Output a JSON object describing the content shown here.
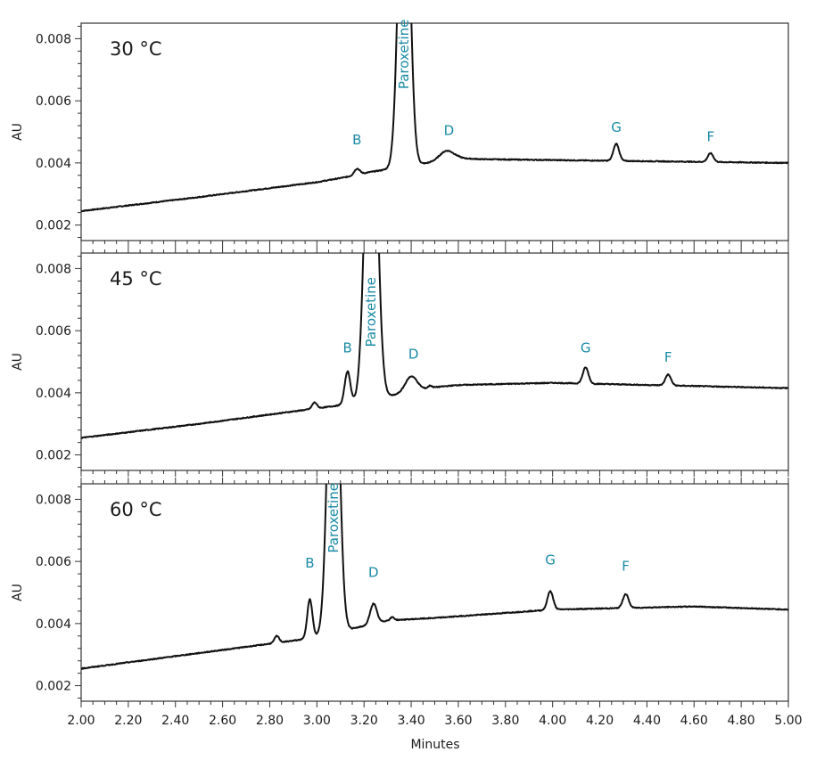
{
  "chart_data": [
    {
      "type": "line",
      "panel_label": "30 °C",
      "ylabel": "AU",
      "ylim": [
        0.0015,
        0.0085
      ],
      "yticks": [
        0.002,
        0.004,
        0.006,
        0.008
      ],
      "ytick_labels": [
        "0.002",
        "0.004",
        "0.006",
        "0.008"
      ],
      "xlim": [
        2.0,
        5.0
      ],
      "baseline": [
        [
          2.0,
          0.00245
        ],
        [
          2.5,
          0.0029
        ],
        [
          3.0,
          0.00338
        ],
        [
          3.15,
          0.00358
        ],
        [
          3.22,
          0.0037
        ],
        [
          3.6,
          0.00415
        ],
        [
          3.7,
          0.00412
        ],
        [
          5.0,
          0.004
        ]
      ],
      "peaks": [
        {
          "label": "B",
          "x": 3.17,
          "height": 0.0002,
          "width": 0.012,
          "label_x": 3.17,
          "label_y": 0.0046
        },
        {
          "label": "Paroxetine",
          "x": 3.37,
          "height": 0.0125,
          "width": 0.022,
          "label_x": 3.37,
          "label_y": 0.0075,
          "vertical": true
        },
        {
          "label": "D",
          "x": 3.55,
          "height": 0.0003,
          "width": 0.03,
          "label_x": 3.56,
          "label_y": 0.0049
        },
        {
          "label": "G",
          "x": 4.27,
          "height": 0.00055,
          "width": 0.012,
          "label_x": 4.27,
          "label_y": 0.005
        },
        {
          "label": "F",
          "x": 4.67,
          "height": 0.00028,
          "width": 0.012,
          "label_x": 4.67,
          "label_y": 0.0047
        }
      ]
    },
    {
      "type": "line",
      "panel_label": "45 °C",
      "ylabel": "AU",
      "ylim": [
        0.0015,
        0.0085
      ],
      "yticks": [
        0.002,
        0.004,
        0.006,
        0.008
      ],
      "ytick_labels": [
        "0.002",
        "0.004",
        "0.006",
        "0.008"
      ],
      "xlim": [
        2.0,
        5.0
      ],
      "baseline": [
        [
          2.0,
          0.00255
        ],
        [
          2.5,
          0.003
        ],
        [
          2.95,
          0.00345
        ],
        [
          3.1,
          0.0036
        ],
        [
          3.18,
          0.0037
        ],
        [
          3.5,
          0.00418
        ],
        [
          3.6,
          0.00425
        ],
        [
          4.0,
          0.00432
        ],
        [
          5.0,
          0.00415
        ]
      ],
      "peaks": [
        {
          "label": "",
          "x": 2.99,
          "height": 0.0002,
          "width": 0.01
        },
        {
          "label": "B",
          "x": 3.13,
          "height": 0.00105,
          "width": 0.012,
          "label_x": 3.13,
          "label_y": 0.0053
        },
        {
          "label": "Paroxetine",
          "x": 3.23,
          "height": 0.0125,
          "width": 0.024,
          "label_x": 3.23,
          "label_y": 0.0066,
          "vertical": true
        },
        {
          "label": "D",
          "x": 3.4,
          "height": 0.0005,
          "width": 0.025,
          "label_x": 3.41,
          "label_y": 0.0051
        },
        {
          "label": "",
          "x": 3.48,
          "height": 8e-05,
          "width": 0.008
        },
        {
          "label": "G",
          "x": 4.14,
          "height": 0.00052,
          "width": 0.012,
          "label_x": 4.14,
          "label_y": 0.0053
        },
        {
          "label": "F",
          "x": 4.49,
          "height": 0.00035,
          "width": 0.012,
          "label_x": 4.49,
          "label_y": 0.005
        }
      ]
    },
    {
      "type": "line",
      "panel_label": "60 °C",
      "ylabel": "AU",
      "ylim": [
        0.0015,
        0.0085
      ],
      "yticks": [
        0.002,
        0.004,
        0.006,
        0.008
      ],
      "ytick_labels": [
        "0.002",
        "0.004",
        "0.006",
        "0.008"
      ],
      "xlim": [
        2.0,
        5.0
      ],
      "xlabel": "Minutes",
      "xticks": [
        2.0,
        2.2,
        2.4,
        2.6,
        2.8,
        3.0,
        3.2,
        3.4,
        3.6,
        3.8,
        4.0,
        4.2,
        4.4,
        4.6,
        4.8,
        5.0
      ],
      "xtick_labels": [
        "2.00",
        "2.20",
        "2.40",
        "2.60",
        "2.80",
        "3.00",
        "3.20",
        "3.40",
        "3.60",
        "3.80",
        "4.00",
        "4.20",
        "4.40",
        "4.60",
        "4.80",
        "5.00"
      ],
      "baseline": [
        [
          2.0,
          0.00255
        ],
        [
          2.5,
          0.00305
        ],
        [
          2.8,
          0.00335
        ],
        [
          2.95,
          0.0035
        ],
        [
          3.02,
          0.0036
        ],
        [
          3.3,
          0.0041
        ],
        [
          3.5,
          0.00418
        ],
        [
          4.0,
          0.00445
        ],
        [
          4.6,
          0.00455
        ],
        [
          5.0,
          0.00445
        ]
      ],
      "peaks": [
        {
          "label": "",
          "x": 2.83,
          "height": 0.00022,
          "width": 0.01
        },
        {
          "label": "B",
          "x": 2.97,
          "height": 0.00125,
          "width": 0.011,
          "label_x": 2.97,
          "label_y": 0.0058
        },
        {
          "label": "Paroxetine",
          "x": 3.07,
          "height": 0.0125,
          "width": 0.022,
          "label_x": 3.07,
          "label_y": 0.0074,
          "vertical": true
        },
        {
          "label": "D",
          "x": 3.24,
          "height": 0.00065,
          "width": 0.014,
          "label_x": 3.24,
          "label_y": 0.0055
        },
        {
          "label": "",
          "x": 3.32,
          "height": 0.0001,
          "width": 0.008
        },
        {
          "label": "G",
          "x": 3.99,
          "height": 0.0006,
          "width": 0.012,
          "label_x": 3.99,
          "label_y": 0.0059
        },
        {
          "label": "F",
          "x": 4.31,
          "height": 0.00045,
          "width": 0.012,
          "label_x": 4.31,
          "label_y": 0.0057
        }
      ]
    }
  ]
}
